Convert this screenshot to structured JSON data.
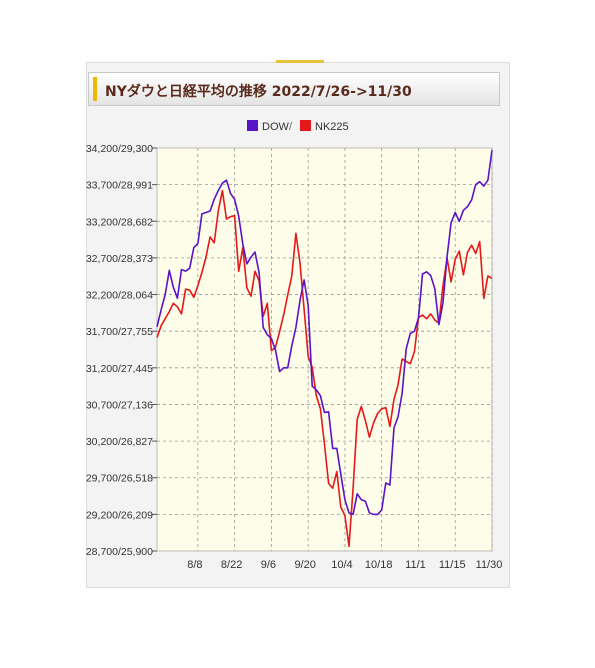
{
  "title": "NYダウと日経平均の推移 2022/7/26->11/30",
  "colors": {
    "dow": "#5a13c8",
    "nk225": "#e41a1a",
    "plot_bg": "#fdfde9",
    "grid": "#9a9a9a"
  },
  "chart_data": {
    "type": "line",
    "title": "NYダウと日経平均の推移 2022/7/26->11/30",
    "legend": {
      "position": "top-center",
      "separator": "/"
    },
    "y_tick_labels": [
      "34,200/29,300",
      "33,700/28,991",
      "33,200/28,682",
      "32,700/28,373",
      "32,200/28,064",
      "31,700/27,755",
      "31,200/27,445",
      "30,700/27,136",
      "30,200/26,827",
      "29,700/26,518",
      "29,200/26,209",
      "28,700/25,900"
    ],
    "ylim_dow": [
      28700,
      34200
    ],
    "ylim_nk225": [
      25900,
      29300
    ],
    "x_tick_labels": [
      "8/8",
      "8/22",
      "9/6",
      "9/20",
      "10/4",
      "10/18",
      "11/1",
      "11/15",
      "11/30"
    ],
    "x_tick_positions": [
      10,
      19,
      28,
      37,
      46,
      55,
      64,
      73,
      82
    ],
    "xlim": [
      0,
      82
    ],
    "grid": true,
    "series": [
      {
        "name": "DOW",
        "values": [
          31760,
          31990,
          32200,
          32530,
          32300,
          32150,
          32540,
          32520,
          32560,
          32840,
          32900,
          33300,
          33320,
          33340,
          33500,
          33620,
          33720,
          33760,
          33580,
          33500,
          33270,
          32890,
          32620,
          32710,
          32780,
          32500,
          31750,
          31650,
          31600,
          31440,
          31150,
          31200,
          31200,
          31500,
          31750,
          32120,
          32400,
          32050,
          30950,
          30900,
          30820,
          30590,
          30600,
          30100,
          30100,
          29750,
          29400,
          29220,
          29200,
          29480,
          29400,
          29380,
          29220,
          29200,
          29200,
          29260,
          29630,
          29600,
          30380,
          30530,
          30850,
          31460,
          31670,
          31700,
          31880,
          32480,
          32510,
          32460,
          32280,
          31790,
          32090,
          32720,
          33180,
          33320,
          33200,
          33350,
          33400,
          33490,
          33700,
          33740,
          33680,
          33760,
          34170
        ]
      },
      {
        "name": "NK225",
        "values": [
          27700,
          27800,
          27860,
          27920,
          27990,
          27960,
          27900,
          28110,
          28100,
          28040,
          28140,
          28250,
          28380,
          28550,
          28500,
          28770,
          28940,
          28700,
          28720,
          28730,
          28260,
          28460,
          28120,
          28050,
          28260,
          28180,
          27880,
          27990,
          27590,
          27620,
          27750,
          27890,
          28060,
          28220,
          28580,
          28330,
          27940,
          27540,
          27450,
          27210,
          27100,
          26800,
          26470,
          26430,
          26570,
          26270,
          26200,
          25940,
          26430,
          27010,
          27120,
          27000,
          26860,
          26980,
          27060,
          27100,
          27110,
          26950,
          27180,
          27300,
          27520,
          27500,
          27480,
          27580,
          27870,
          27890,
          27860,
          27900,
          27850,
          27820,
          28140,
          28370,
          28170,
          28360,
          28430,
          28230,
          28420,
          28480,
          28410,
          28510,
          28030,
          28220,
          28200
        ]
      }
    ]
  }
}
